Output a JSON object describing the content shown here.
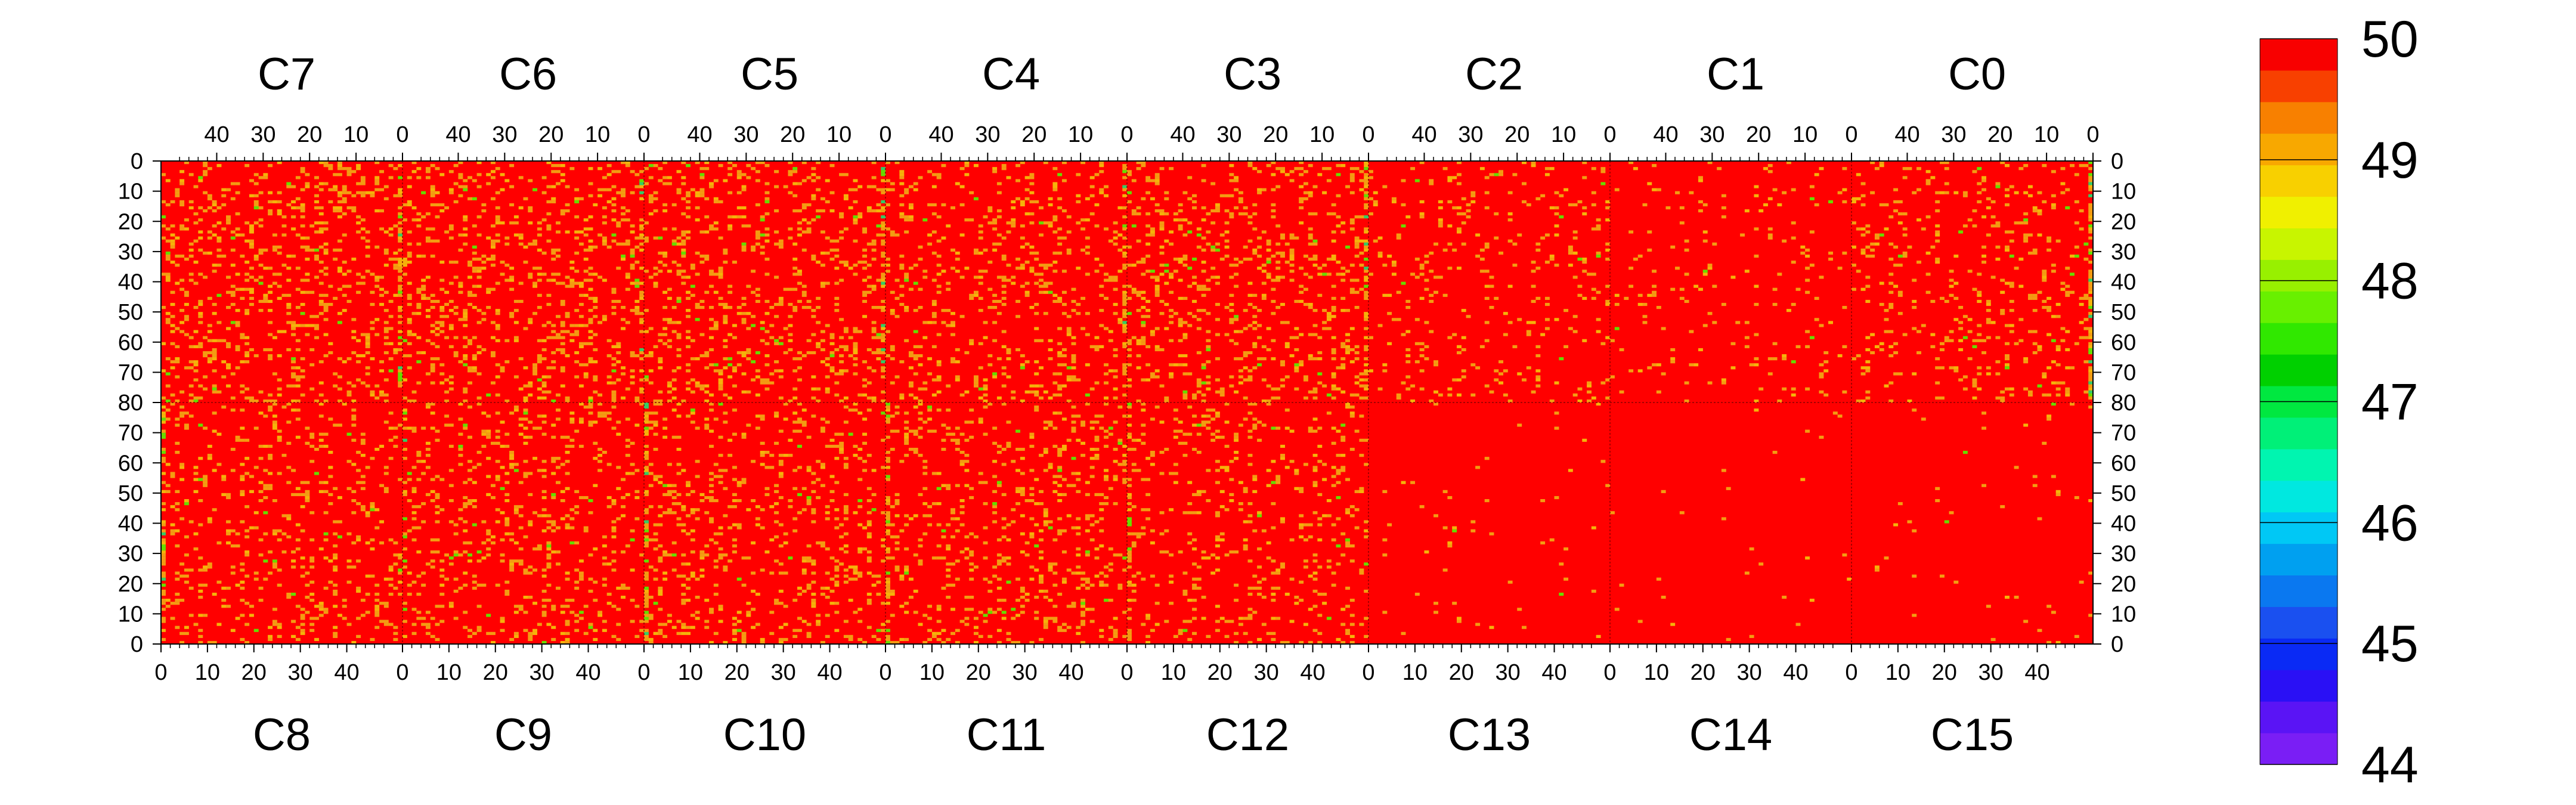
{
  "chart_data": {
    "type": "heatmap",
    "title": "",
    "top_row": {
      "chips": [
        "C7",
        "C6",
        "C5",
        "C4",
        "C3",
        "C2",
        "C1",
        "C0"
      ],
      "x_tick_labels": [
        "40",
        "30",
        "20",
        "10",
        "0"
      ],
      "x_direction": "descending"
    },
    "bottom_row": {
      "chips": [
        "C8",
        "C9",
        "C10",
        "C11",
        "C12",
        "C13",
        "C14",
        "C15"
      ],
      "x_tick_labels": [
        "0",
        "10",
        "20",
        "30",
        "40"
      ],
      "x_direction": "ascending"
    },
    "x_range_per_chip": [
      0,
      52
    ],
    "y_upper_tick_labels": [
      "0",
      "10",
      "20",
      "30",
      "40",
      "50",
      "60",
      "70",
      "80"
    ],
    "y_lower_tick_labels": [
      "80",
      "70",
      "60",
      "50",
      "40",
      "30",
      "20",
      "10",
      "0"
    ],
    "y_range_per_chip": [
      0,
      80
    ],
    "z_range": [
      44,
      50
    ],
    "colorbar": {
      "tick_labels": [
        "44",
        "45",
        "46",
        "47",
        "48",
        "49",
        "50"
      ],
      "palette": [
        "#7a1ef5",
        "#5a14f5",
        "#2a10f5",
        "#0a2af5",
        "#1a50f0",
        "#0a78f0",
        "#00a0f0",
        "#00c8f5",
        "#00e8e0",
        "#00f5b0",
        "#00f078",
        "#00e840",
        "#00d000",
        "#30e800",
        "#68f000",
        "#98f000",
        "#c8f500",
        "#f0f000",
        "#f8d000",
        "#f8a800",
        "#f88000",
        "#f84000",
        "#f80000"
      ]
    },
    "base_color": "#ff0000",
    "noise_colors": [
      "#f39c12",
      "#f5b30a",
      "#66dd00",
      "#33cc66"
    ],
    "noisy_columns": [
      {
        "row": "top",
        "chip": "C7",
        "x": 0,
        "weight": 0.55
      },
      {
        "row": "top",
        "chip": "C6",
        "x": 0,
        "weight": 0.35
      },
      {
        "row": "top",
        "chip": "C5",
        "x": 0,
        "weight": 0.55
      },
      {
        "row": "top",
        "chip": "C4",
        "x": 0,
        "weight": 0.45
      },
      {
        "row": "top",
        "chip": "C3",
        "x": 0,
        "weight": 0.6
      },
      {
        "row": "top",
        "chip": "C0",
        "x": 0,
        "weight": 0.6
      },
      {
        "row": "bottom",
        "chip": "C8",
        "x": 0,
        "weight": 0.45
      },
      {
        "row": "bottom",
        "chip": "C9",
        "x": 0,
        "weight": 0.3
      },
      {
        "row": "bottom",
        "chip": "C10",
        "x": 0,
        "weight": 0.5
      },
      {
        "row": "bottom",
        "chip": "C11",
        "x": 0,
        "weight": 0.4
      },
      {
        "row": "bottom",
        "chip": "C12",
        "x": 0,
        "weight": 0.45
      }
    ],
    "chip_noise_level": {
      "C7": 0.16,
      "C6": 0.16,
      "C5": 0.15,
      "C4": 0.13,
      "C3": 0.15,
      "C2": 0.08,
      "C1": 0.04,
      "C0": 0.1,
      "C8": 0.12,
      "C9": 0.13,
      "C10": 0.13,
      "C11": 0.13,
      "C12": 0.11,
      "C13": 0.01,
      "C14": 0.01,
      "C15": 0.01
    }
  }
}
